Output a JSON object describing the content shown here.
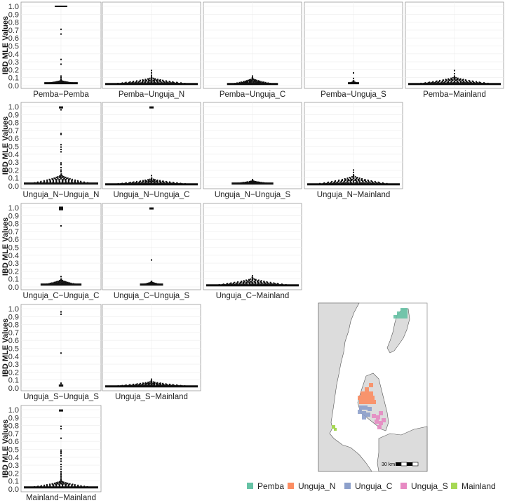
{
  "chart_data": {
    "type": "scatter",
    "subtype": "beeswarm-matrix",
    "ylabel": "IBD MLE Values",
    "ylim": [
      0,
      1.0
    ],
    "yticks": [
      "0.0",
      "0.1",
      "0.2",
      "0.3",
      "0.4",
      "0.5",
      "0.6",
      "0.7",
      "0.8",
      "0.9",
      "1.0"
    ],
    "panels": [
      {
        "label": "Pemba−Pemba",
        "row": 0,
        "col": 0,
        "outliers": [
          1.0,
          0.71,
          0.65,
          0.33,
          0.27,
          0.12,
          0.1,
          0.08
        ],
        "spread": 0.45,
        "density_peak": 0.03,
        "max_core": 0.07
      },
      {
        "label": "Pemba−Unguja_N",
        "row": 0,
        "col": 1,
        "outliers": [
          0.19,
          0.16,
          0.13
        ],
        "spread": 1.0,
        "density_peak": 0.02,
        "max_core": 0.11
      },
      {
        "label": "Pemba−Unguja_C",
        "row": 0,
        "col": 2,
        "outliers": [
          0.12
        ],
        "spread": 0.55,
        "density_peak": 0.02,
        "max_core": 0.1
      },
      {
        "label": "Pemba−Unguja_S",
        "row": 0,
        "col": 3,
        "outliers": [
          0.16,
          0.09
        ],
        "spread": 0.12,
        "density_peak": 0.03,
        "max_core": 0.06
      },
      {
        "label": "Pemba−Mainland",
        "row": 0,
        "col": 4,
        "outliers": [
          0.19,
          0.15
        ],
        "spread": 1.0,
        "density_peak": 0.02,
        "max_core": 0.12
      },
      {
        "label": "Unguja_N−Unguja_N",
        "row": 1,
        "col": 0,
        "outliers": [
          0.99,
          0.96,
          0.66,
          0.65,
          0.52,
          0.49,
          0.46,
          0.43,
          0.29,
          0.27,
          0.23,
          0.2,
          0.18
        ],
        "spread": 1.0,
        "density_peak": 0.03,
        "max_core": 0.15
      },
      {
        "label": "Unguja_N−Unguja_C",
        "row": 1,
        "col": 1,
        "outliers": [
          0.99,
          0.13
        ],
        "spread": 1.0,
        "density_peak": 0.02,
        "max_core": 0.1
      },
      {
        "label": "Unguja_N−Unguja_S",
        "row": 1,
        "col": 2,
        "outliers": [
          0.08
        ],
        "spread": 0.45,
        "density_peak": 0.03,
        "max_core": 0.07
      },
      {
        "label": "Unguja_N−Mainland",
        "row": 1,
        "col": 3,
        "outliers": [
          0.2,
          0.17
        ],
        "spread": 1.0,
        "density_peak": 0.02,
        "max_core": 0.14
      },
      {
        "label": "Unguja_C−Unguja_C",
        "row": 2,
        "col": 0,
        "outliers": [
          1.0,
          0.99,
          0.98,
          0.77,
          0.13
        ],
        "spread": 0.55,
        "density_peak": 0.03,
        "max_core": 0.1
      },
      {
        "label": "Unguja_C−Unguja_S",
        "row": 2,
        "col": 1,
        "outliers": [
          0.99,
          0.34
        ],
        "spread": 0.25,
        "density_peak": 0.03,
        "max_core": 0.07
      },
      {
        "label": "Unguja_C−Mainland",
        "row": 2,
        "col": 2,
        "outliers": [
          0.14
        ],
        "spread": 1.0,
        "density_peak": 0.02,
        "max_core": 0.12
      },
      {
        "label": "Unguja_S−Unguja_S",
        "row": 3,
        "col": 0,
        "outliers": [
          0.96,
          0.93,
          0.44,
          0.06,
          0.04
        ],
        "spread": 0.06,
        "density_peak": 0.03,
        "max_core": 0.04
      },
      {
        "label": "Unguja_S−Mainland",
        "row": 3,
        "col": 1,
        "outliers": [
          0.11
        ],
        "spread": 1.0,
        "density_peak": 0.02,
        "max_core": 0.09
      },
      {
        "label": "Mainland−Mainland",
        "row": 4,
        "col": 0,
        "outliers": [
          0.99,
          0.79,
          0.76,
          0.64,
          0.49,
          0.47,
          0.45,
          0.42,
          0.38,
          0.35,
          0.31,
          0.28,
          0.25,
          0.22,
          0.2,
          0.18,
          0.16,
          0.14,
          0.12
        ],
        "spread": 1.0,
        "density_peak": 0.02,
        "max_core": 0.11
      }
    ]
  },
  "map": {
    "scale_label": "30 km",
    "regions": [
      {
        "name": "Pemba",
        "color": "#66C2A5"
      },
      {
        "name": "Unguja_N",
        "color": "#FC8D62"
      },
      {
        "name": "Unguja_C",
        "color": "#8DA0CB"
      },
      {
        "name": "Unguja_S",
        "color": "#E78AC3"
      },
      {
        "name": "Mainland",
        "color": "#A6D854"
      }
    ]
  },
  "legend": {
    "items": [
      "Pemba",
      "Unguja_N",
      "Unguja_C",
      "Unguja_S",
      "Mainland"
    ]
  }
}
